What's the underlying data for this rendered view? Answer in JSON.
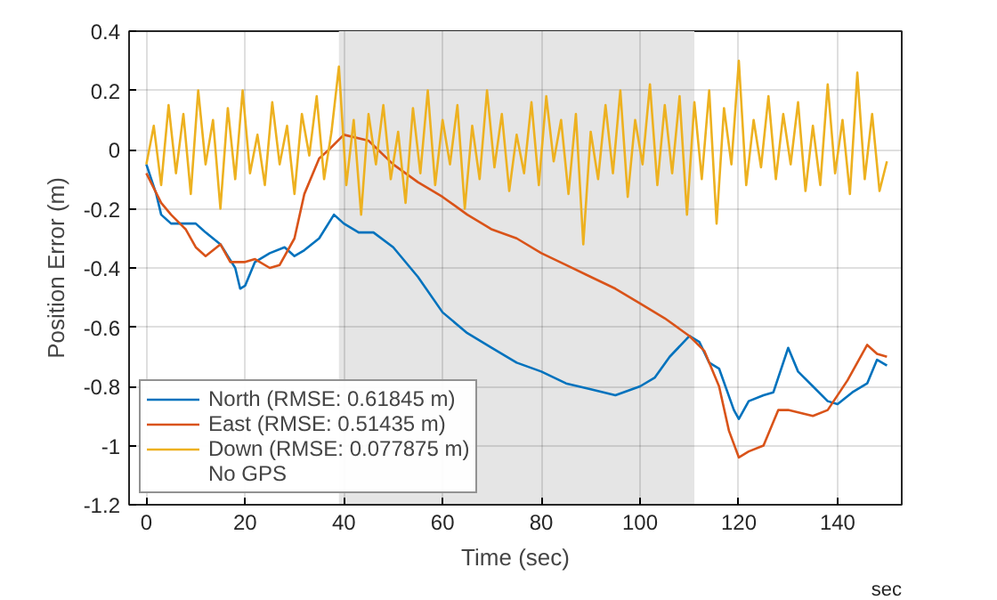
{
  "chart_data": {
    "type": "line",
    "xlabel": "Time (sec)",
    "ylabel": "Position Error (m)",
    "xlim": [
      -3.5,
      153
    ],
    "ylim": [
      -1.2,
      0.4
    ],
    "xticks": [
      0,
      20,
      40,
      60,
      80,
      100,
      120,
      140
    ],
    "yticks": [
      {
        "value": -1.2,
        "label": "-1.2"
      },
      {
        "value": -1,
        "label": "-1"
      },
      {
        "value": -0.8,
        "label": "-0.8"
      },
      {
        "value": -0.6,
        "label": "-0.6"
      },
      {
        "value": -0.4,
        "label": "-0.4"
      },
      {
        "value": -0.2,
        "label": "-0.2"
      },
      0,
      {
        "value": 0.2,
        "label": "0.2"
      },
      {
        "value": 0.4,
        "label": "0.4"
      }
    ],
    "grid": true,
    "legend": "bottom left",
    "line_style": "solid",
    "marker": "none",
    "annotations": [
      "sec"
    ],
    "bands": [
      {
        "axis": "x",
        "from": 39,
        "to": 111,
        "label": "No GPS",
        "color": "#e5e5e5"
      }
    ],
    "series": [
      {
        "name": "North (RMSE: 0.61845 m)",
        "color": "#0072bd",
        "x": [
          0,
          2,
          3,
          5,
          8,
          10,
          12,
          15,
          18,
          19,
          20,
          22,
          25,
          28,
          30,
          32,
          35,
          38,
          40,
          43,
          46,
          50,
          55,
          60,
          65,
          70,
          75,
          80,
          85,
          90,
          95,
          100,
          103,
          106,
          110,
          112,
          114,
          116,
          119,
          120,
          122,
          125,
          127,
          130,
          132,
          135,
          138,
          140,
          143,
          146,
          148,
          150
        ],
        "values": [
          -0.05,
          -0.15,
          -0.22,
          -0.25,
          -0.25,
          -0.25,
          -0.28,
          -0.32,
          -0.4,
          -0.47,
          -0.46,
          -0.38,
          -0.35,
          -0.33,
          -0.36,
          -0.34,
          -0.3,
          -0.22,
          -0.25,
          -0.28,
          -0.28,
          -0.33,
          -0.43,
          -0.55,
          -0.62,
          -0.67,
          -0.72,
          -0.75,
          -0.79,
          -0.81,
          -0.83,
          -0.8,
          -0.77,
          -0.7,
          -0.63,
          -0.65,
          -0.72,
          -0.74,
          -0.88,
          -0.91,
          -0.85,
          -0.83,
          -0.82,
          -0.67,
          -0.75,
          -0.8,
          -0.85,
          -0.86,
          -0.82,
          -0.79,
          -0.71,
          -0.73
        ]
      },
      {
        "name": "East (RMSE: 0.51435 m)",
        "color": "#d95319",
        "x": [
          0,
          3,
          5,
          8,
          10,
          12,
          15,
          17,
          20,
          22,
          25,
          27,
          30,
          32,
          35,
          37,
          40,
          45,
          50,
          55,
          60,
          65,
          70,
          75,
          80,
          85,
          90,
          95,
          100,
          105,
          110,
          113,
          116,
          118,
          120,
          122,
          125,
          128,
          130,
          135,
          138,
          142,
          146,
          148,
          150
        ],
        "values": [
          -0.08,
          -0.18,
          -0.22,
          -0.27,
          -0.33,
          -0.36,
          -0.32,
          -0.38,
          -0.38,
          -0.37,
          -0.4,
          -0.39,
          -0.3,
          -0.15,
          -0.03,
          0.0,
          0.05,
          0.03,
          -0.05,
          -0.11,
          -0.16,
          -0.22,
          -0.27,
          -0.3,
          -0.35,
          -0.39,
          -0.43,
          -0.47,
          -0.52,
          -0.57,
          -0.63,
          -0.68,
          -0.8,
          -0.95,
          -1.04,
          -1.02,
          -1.0,
          -0.88,
          -0.88,
          -0.9,
          -0.88,
          -0.78,
          -0.66,
          -0.69,
          -0.7
        ]
      },
      {
        "name": "Down (RMSE: 0.077875 m)",
        "color": "#edb120",
        "x": [
          0,
          1.5,
          3,
          4.5,
          6,
          7.5,
          9,
          10.5,
          12,
          13.5,
          15,
          16.5,
          18,
          19.5,
          21,
          22.5,
          24,
          25.5,
          27,
          28.5,
          30,
          31.5,
          33,
          34.5,
          36,
          37.5,
          39,
          40.5,
          42,
          43.5,
          45,
          46.5,
          48,
          49.5,
          51,
          52.5,
          54,
          55.5,
          57,
          58.5,
          60,
          61.5,
          63,
          64.5,
          66,
          67.5,
          69,
          70.5,
          72,
          73.5,
          75,
          76.5,
          78,
          79.5,
          81,
          82.5,
          84,
          85.5,
          87,
          88.5,
          90,
          91.5,
          93,
          94.5,
          96,
          97.5,
          99,
          100.5,
          102,
          103.5,
          105,
          106.5,
          108,
          109.5,
          111,
          112.5,
          114,
          115.5,
          117,
          118.5,
          120,
          121.5,
          123,
          124.5,
          126,
          127.5,
          129,
          130.5,
          132,
          133.5,
          135,
          136.5,
          138,
          139.5,
          141,
          142.5,
          144,
          145.5,
          147,
          148.5,
          150
        ],
        "values": [
          -0.05,
          0.08,
          -0.12,
          0.15,
          -0.08,
          0.12,
          -0.15,
          0.2,
          -0.05,
          0.1,
          -0.2,
          0.14,
          -0.1,
          0.2,
          -0.08,
          0.05,
          -0.12,
          0.16,
          -0.05,
          0.08,
          -0.15,
          0.12,
          -0.02,
          0.18,
          -0.1,
          0.06,
          0.28,
          -0.12,
          0.1,
          -0.22,
          0.12,
          -0.05,
          0.15,
          -0.1,
          0.06,
          -0.18,
          0.14,
          -0.08,
          0.2,
          -0.12,
          0.1,
          -0.05,
          0.15,
          -0.2,
          0.08,
          -0.1,
          0.2,
          -0.06,
          0.12,
          -0.14,
          0.05,
          -0.08,
          0.16,
          -0.12,
          0.18,
          -0.04,
          0.1,
          -0.15,
          0.12,
          -0.32,
          0.06,
          -0.1,
          0.15,
          -0.08,
          0.2,
          -0.16,
          0.1,
          -0.05,
          0.22,
          -0.12,
          0.15,
          -0.08,
          0.18,
          -0.22,
          0.16,
          -0.1,
          0.2,
          -0.25,
          0.14,
          -0.05,
          0.3,
          -0.12,
          0.1,
          -0.06,
          0.18,
          -0.1,
          0.12,
          -0.05,
          0.16,
          -0.14,
          0.08,
          -0.12,
          0.22,
          -0.08,
          0.1,
          -0.15,
          0.26,
          -0.1,
          0.12,
          -0.14,
          -0.04
        ]
      }
    ]
  }
}
